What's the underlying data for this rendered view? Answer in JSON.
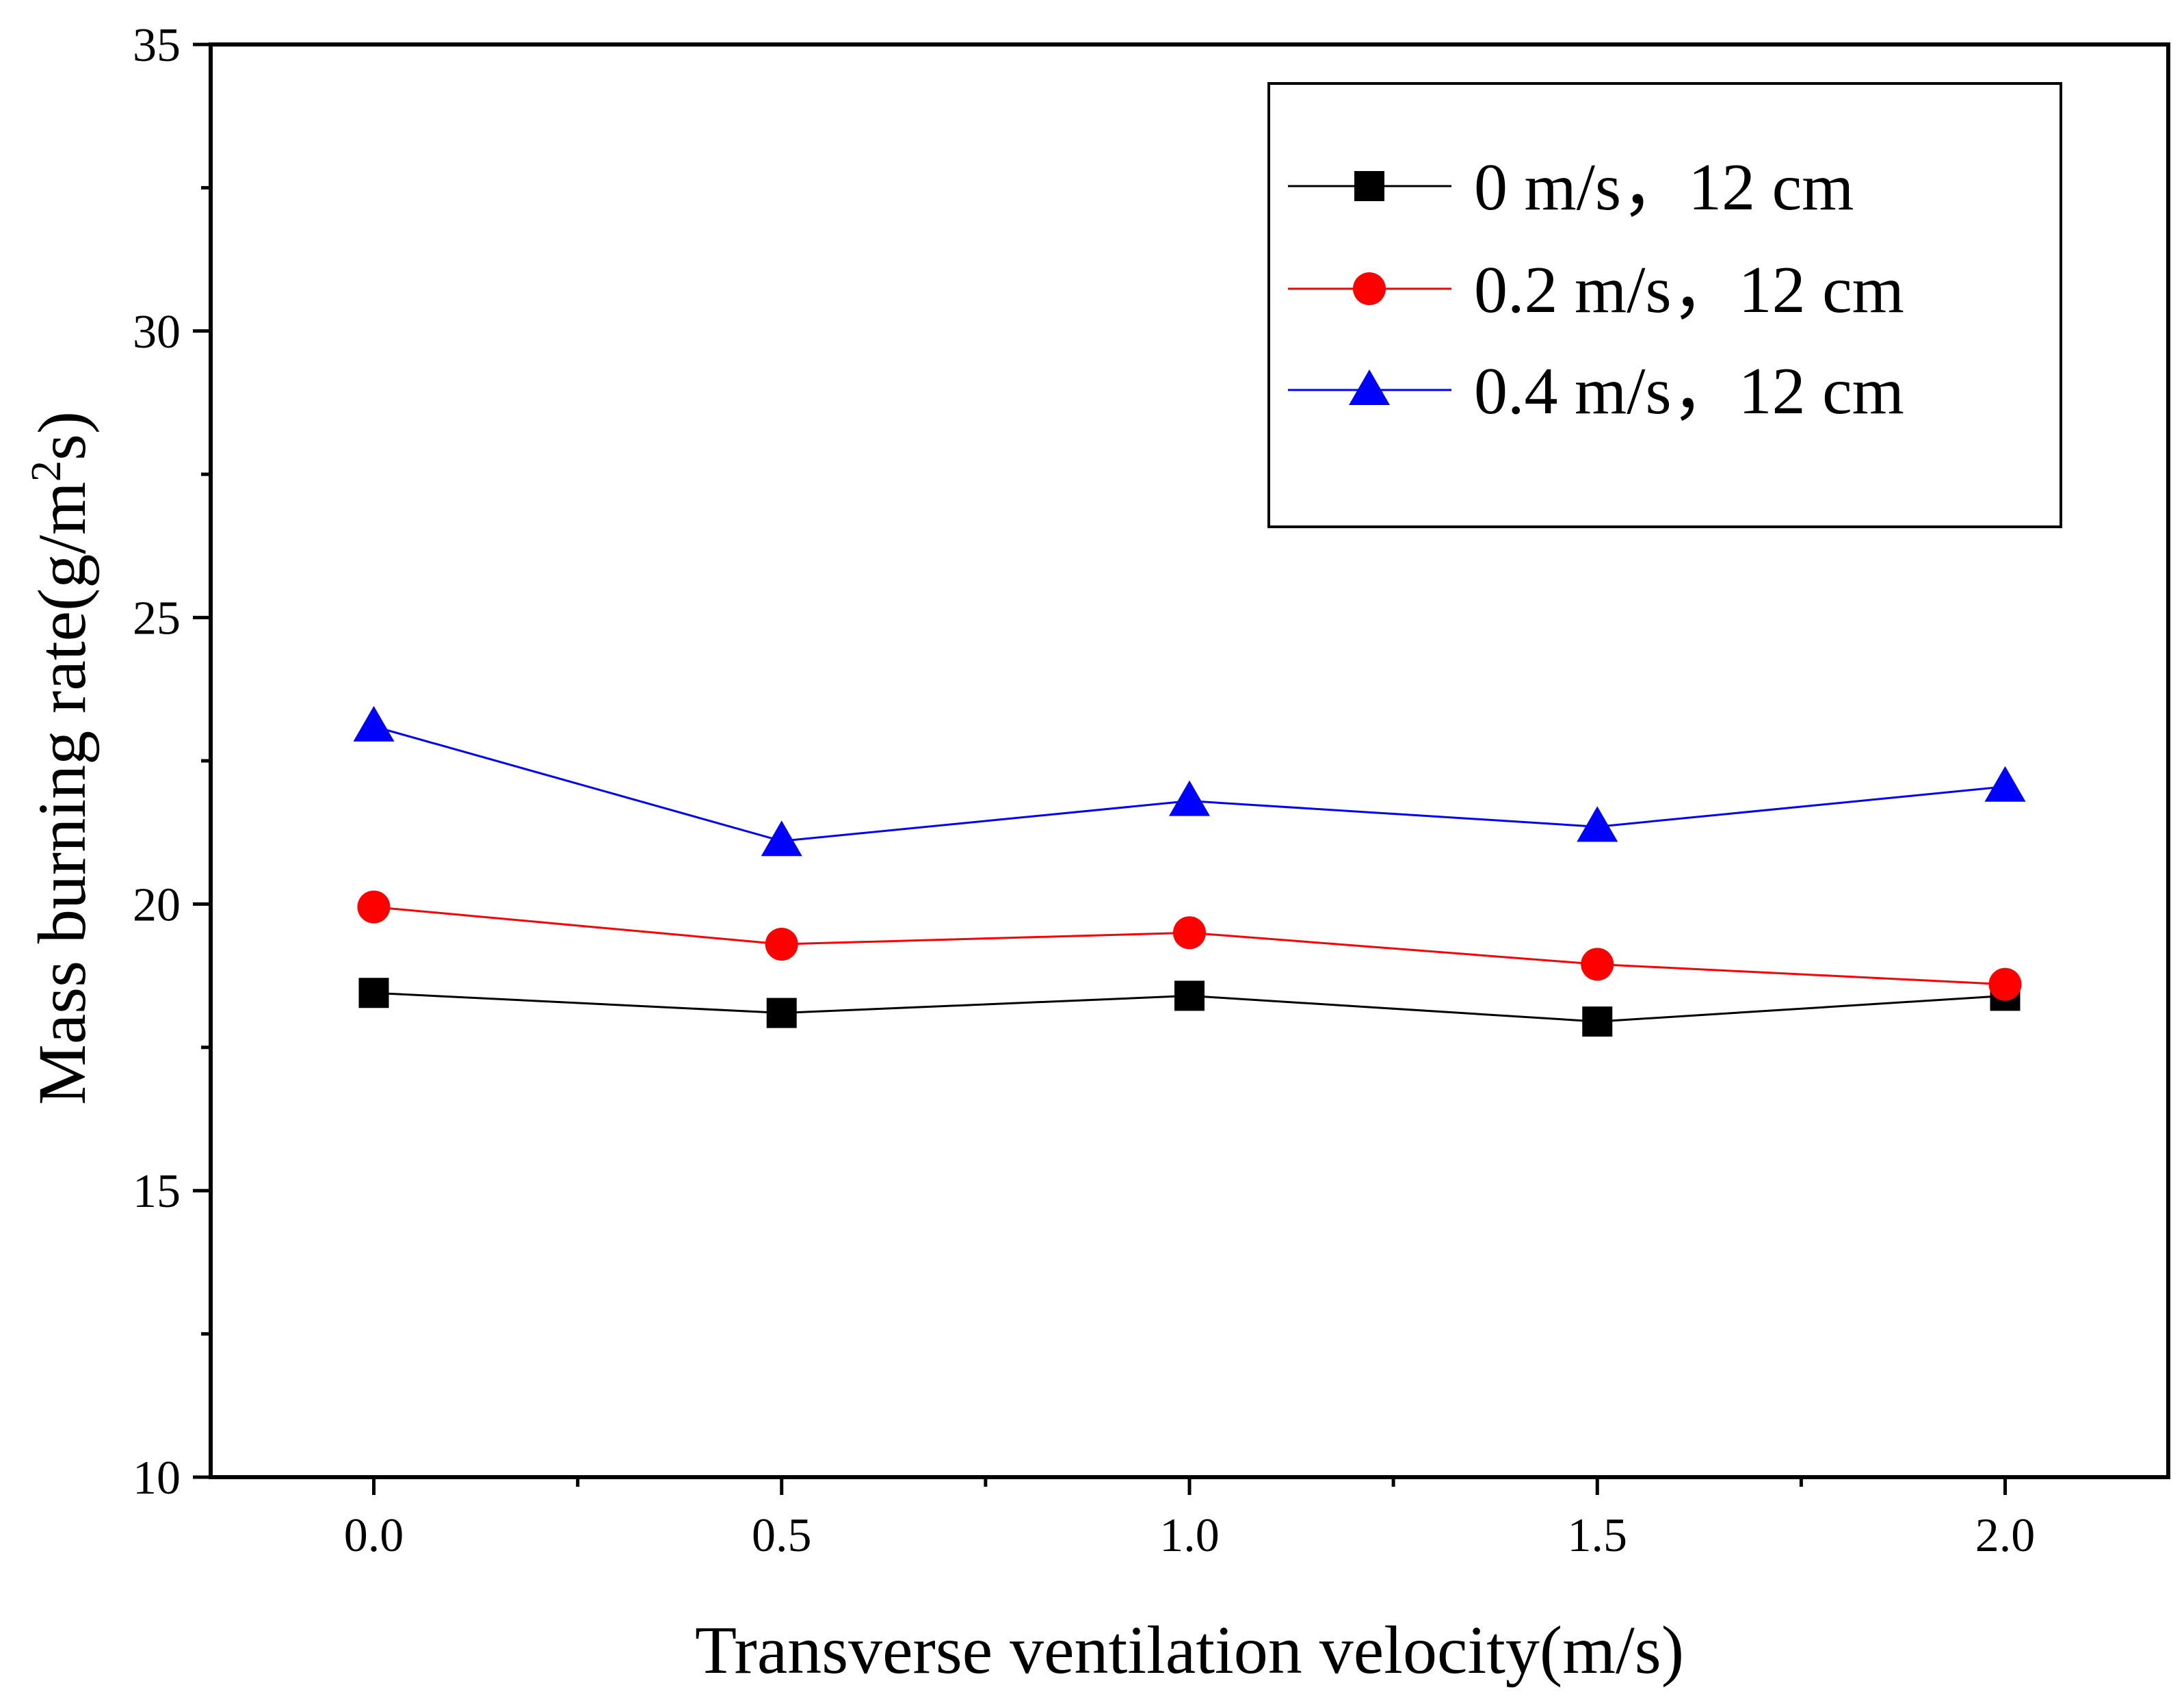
{
  "chart_data": {
    "type": "line",
    "title": "",
    "xlabel": "Transverse ventilation velocity(m/s)",
    "ylabel": {
      "prefix": "Mass burning rate(g/m",
      "sup": "2",
      "suffix": "s)"
    },
    "xlim": [
      -0.2,
      2.2
    ],
    "ylim": [
      10,
      35
    ],
    "x": [
      0.0,
      0.5,
      1.0,
      1.5,
      2.0
    ],
    "xticks": [
      0.0,
      0.5,
      1.0,
      1.5,
      2.0
    ],
    "xtick_labels": [
      "0.0",
      "0.5",
      "1.0",
      "1.5",
      "2.0"
    ],
    "xminor": [
      0.25,
      0.75,
      1.25,
      1.75
    ],
    "yticks": [
      10,
      15,
      20,
      25,
      30,
      35
    ],
    "ytick_labels": [
      "10",
      "15",
      "20",
      "25",
      "30",
      "35"
    ],
    "yminor": [
      12.5,
      17.5,
      22.5,
      27.5,
      32.5
    ],
    "legend_position": "top-right",
    "series": [
      {
        "name": "0 m/s，12 cm",
        "color": "#000000",
        "marker": "square",
        "values": [
          18.45,
          18.1,
          18.4,
          17.95,
          18.4
        ]
      },
      {
        "name": "0.2 m/s，12 cm",
        "color": "#ff0000",
        "marker": "circle",
        "values": [
          19.95,
          19.3,
          19.5,
          18.95,
          18.6
        ]
      },
      {
        "name": "0.4 m/s，12 cm",
        "color": "#0000ff",
        "marker": "triangle",
        "values": [
          23.1,
          21.1,
          21.8,
          21.35,
          22.05
        ]
      }
    ]
  }
}
